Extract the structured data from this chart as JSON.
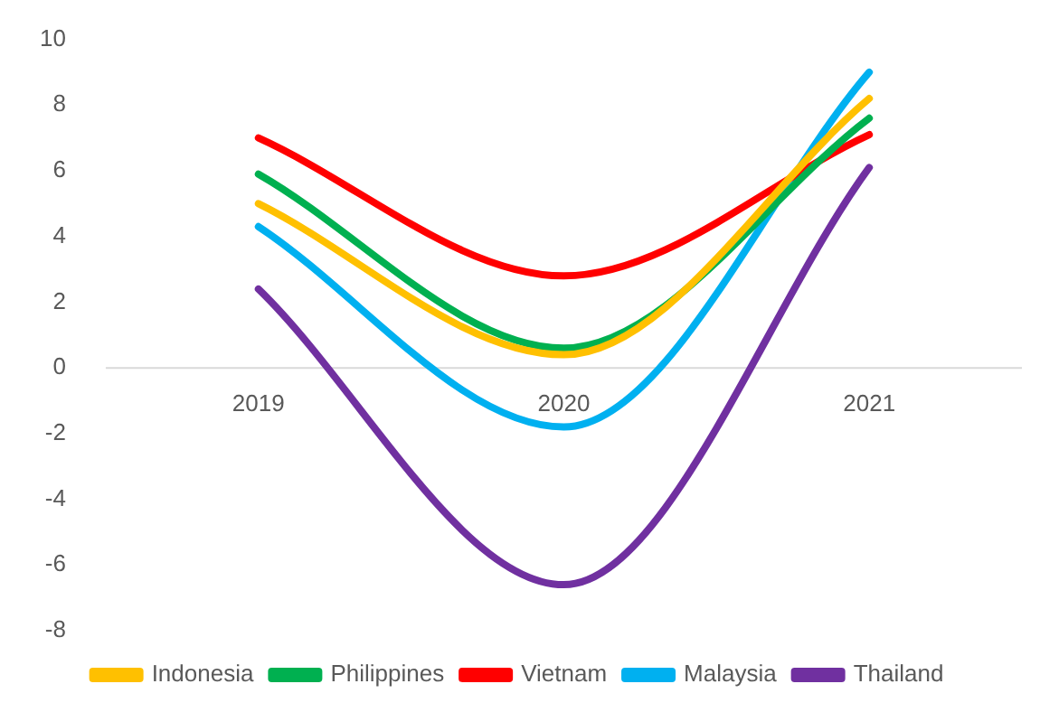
{
  "chart_data": {
    "type": "line",
    "categories": [
      "2019",
      "2020",
      "2021"
    ],
    "series": [
      {
        "name": "Indonesia",
        "color": "#ffc000",
        "values": [
          5.0,
          0.4,
          8.2
        ]
      },
      {
        "name": "Philippines",
        "color": "#00b050",
        "values": [
          5.9,
          0.6,
          7.6
        ]
      },
      {
        "name": "Vietnam",
        "color": "#ff0000",
        "values": [
          7.0,
          2.8,
          7.1
        ]
      },
      {
        "name": "Malaysia",
        "color": "#00b0f0",
        "values": [
          4.3,
          -1.8,
          9.0
        ]
      },
      {
        "name": "Thailand",
        "color": "#7030a0",
        "values": [
          2.4,
          -6.6,
          6.1
        ]
      }
    ],
    "ylim": [
      -8,
      10
    ],
    "yticks": [
      -8,
      -6,
      -4,
      -2,
      0,
      2,
      4,
      6,
      8,
      10
    ],
    "legend": "bottom",
    "marker": "none",
    "line_style": "solid"
  }
}
